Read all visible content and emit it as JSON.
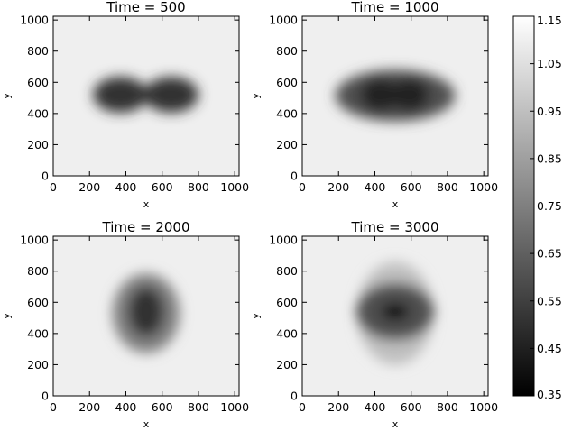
{
  "chart_data": {
    "type": "heatmap",
    "colormap": "grayscale",
    "colorbar": {
      "min": 0.35,
      "max": 1.15,
      "ticks": [
        "1.15",
        "1.05",
        "0.95",
        "0.85",
        "0.75",
        "0.65",
        "0.55",
        "0.45",
        "0.35"
      ],
      "placement": "right"
    },
    "panels": [
      {
        "title": "Time =  500",
        "xlabel": "x",
        "ylabel": "y",
        "xlim": [
          0,
          1024
        ],
        "ylim": [
          0,
          1024
        ],
        "xticks": [
          "0",
          "200",
          "400",
          "600",
          "800",
          "1000"
        ],
        "yticks": [
          "0",
          "200",
          "400",
          "600",
          "800",
          "1000"
        ],
        "background": 1.1,
        "features": [
          {
            "cx": 370,
            "cy": 520,
            "rx": 150,
            "ry": 115,
            "value": 0.5
          },
          {
            "cx": 650,
            "cy": 520,
            "rx": 150,
            "ry": 115,
            "value": 0.5
          }
        ]
      },
      {
        "title": "Time = 1000",
        "xlabel": "x",
        "ylabel": "y",
        "xlim": [
          0,
          1024
        ],
        "ylim": [
          0,
          1024
        ],
        "xticks": [
          "0",
          "200",
          "400",
          "600",
          "800",
          "1000"
        ],
        "yticks": [
          "0",
          "200",
          "400",
          "600",
          "800",
          "1000"
        ],
        "background": 1.1,
        "features": [
          {
            "cx": 512,
            "cy": 515,
            "rx": 330,
            "ry": 165,
            "value": 0.6
          },
          {
            "cx": 430,
            "cy": 520,
            "rx": 110,
            "ry": 105,
            "value": 0.45
          },
          {
            "cx": 590,
            "cy": 520,
            "rx": 110,
            "ry": 105,
            "value": 0.45
          }
        ]
      },
      {
        "title": "Time = 2000",
        "xlabel": "x",
        "ylabel": "y",
        "xlim": [
          0,
          1024
        ],
        "ylim": [
          0,
          1024
        ],
        "xticks": [
          "0",
          "200",
          "400",
          "600",
          "800",
          "1000"
        ],
        "yticks": [
          "0",
          "200",
          "400",
          "600",
          "800",
          "1000"
        ],
        "background": 1.1,
        "features": [
          {
            "cx": 512,
            "cy": 530,
            "rx": 185,
            "ry": 255,
            "value": 0.75
          },
          {
            "cx": 512,
            "cy": 540,
            "rx": 100,
            "ry": 160,
            "value": 0.5
          }
        ]
      },
      {
        "title": "Time = 3000",
        "xlabel": "x",
        "ylabel": "y",
        "xlim": [
          0,
          1024
        ],
        "ylim": [
          0,
          1024
        ],
        "xticks": [
          "0",
          "200",
          "400",
          "600",
          "800",
          "1000"
        ],
        "yticks": [
          "0",
          "200",
          "400",
          "600",
          "800",
          "1000"
        ],
        "background": 1.1,
        "features": [
          {
            "cx": 512,
            "cy": 530,
            "rx": 210,
            "ry": 330,
            "value": 0.95
          },
          {
            "cx": 512,
            "cy": 540,
            "rx": 215,
            "ry": 185,
            "value": 0.6
          },
          {
            "cx": 512,
            "cy": 540,
            "rx": 80,
            "ry": 55,
            "value": 0.4
          }
        ]
      }
    ]
  }
}
